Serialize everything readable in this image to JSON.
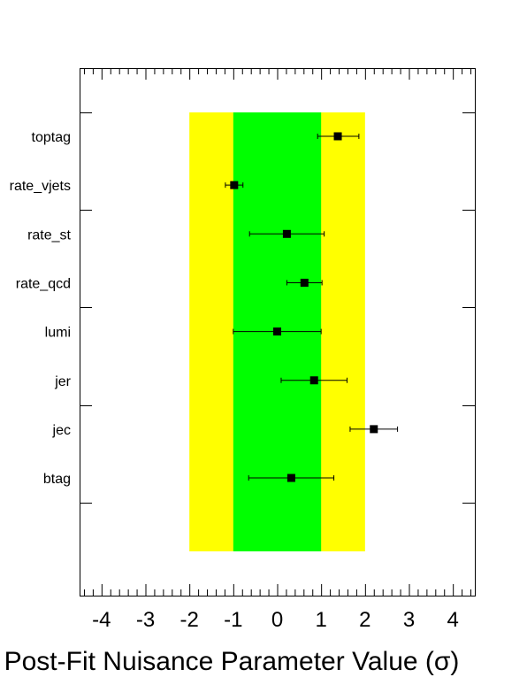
{
  "chart_data": {
    "type": "scatter",
    "orientation": "horizontal",
    "title": "",
    "xlabel": "Post-Fit Nuisance Parameter Value (σ)",
    "ylabel": "",
    "xlim": [
      -4.5,
      4.5
    ],
    "x_ticks": [
      -4,
      -3,
      -2,
      -1,
      0,
      1,
      2,
      3,
      4
    ],
    "x_tick_labels": [
      "-4",
      "-3",
      "-2",
      "-1",
      "0",
      "1",
      "2",
      "3",
      "4"
    ],
    "grid": false,
    "legend": "none",
    "bands": [
      {
        "from": -2,
        "to": 2,
        "color": "#ffff00"
      },
      {
        "from": -1,
        "to": 1,
        "color": "#00ff00"
      }
    ],
    "categories": [
      "toptag",
      "rate_vjets",
      "rate_st",
      "rate_qcd",
      "lumi",
      "jer",
      "jec",
      "btag"
    ],
    "values": [
      1.38,
      -0.98,
      0.22,
      0.62,
      0.0,
      0.84,
      2.2,
      0.32
    ],
    "err_low": [
      0.46,
      0.2,
      0.85,
      0.4,
      1.0,
      0.75,
      0.54,
      0.97
    ],
    "err_high": [
      0.48,
      0.2,
      0.85,
      0.4,
      1.0,
      0.75,
      0.54,
      0.97
    ],
    "marker_color": "#000000"
  }
}
